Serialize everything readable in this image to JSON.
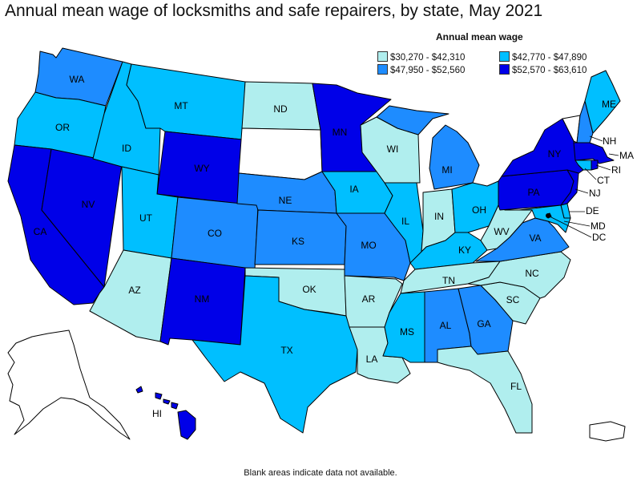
{
  "title": "Annual mean wage of locksmiths and safe repairers, by state, May 2021",
  "legend": {
    "title": "Annual mean wage",
    "items": [
      {
        "label": "$30,270 - $42,310",
        "color": "#b0eeee"
      },
      {
        "label": "$42,770 - $47,890",
        "color": "#00bfff"
      },
      {
        "label": "$47,950 - $52,560",
        "color": "#1e8cff"
      },
      {
        "label": "$52,570 - $63,610",
        "color": "#0000e8"
      }
    ]
  },
  "footnote": "Blank areas indicate data not available.",
  "no_data_color": "#ffffff",
  "states": {
    "WA": {
      "label": "WA",
      "tier": 2
    },
    "OR": {
      "label": "OR",
      "tier": 1
    },
    "CA": {
      "label": "CA",
      "tier": 3
    },
    "NV": {
      "label": "NV",
      "tier": 3
    },
    "ID": {
      "label": "ID",
      "tier": 1
    },
    "MT": {
      "label": "MT",
      "tier": 1
    },
    "WY": {
      "label": "WY",
      "tier": 3
    },
    "UT": {
      "label": "UT",
      "tier": 1
    },
    "AZ": {
      "label": "AZ",
      "tier": 0
    },
    "CO": {
      "label": "CO",
      "tier": 2
    },
    "NM": {
      "label": "NM",
      "tier": 3
    },
    "ND": {
      "label": "ND",
      "tier": 0
    },
    "SD": {
      "label": "",
      "tier": null
    },
    "NE": {
      "label": "NE",
      "tier": 2
    },
    "KS": {
      "label": "KS",
      "tier": 2
    },
    "OK": {
      "label": "OK",
      "tier": 0
    },
    "TX": {
      "label": "TX",
      "tier": 1
    },
    "MN": {
      "label": "MN",
      "tier": 3
    },
    "IA": {
      "label": "IA",
      "tier": 1
    },
    "MO": {
      "label": "MO",
      "tier": 2
    },
    "AR": {
      "label": "AR",
      "tier": 0
    },
    "LA": {
      "label": "LA",
      "tier": 0
    },
    "WI": {
      "label": "WI",
      "tier": 0
    },
    "IL": {
      "label": "IL",
      "tier": 1
    },
    "MI": {
      "label": "MI",
      "tier": 2
    },
    "IN": {
      "label": "IN",
      "tier": 0
    },
    "OH": {
      "label": "OH",
      "tier": 1
    },
    "KY": {
      "label": "KY",
      "tier": 1
    },
    "TN": {
      "label": "TN",
      "tier": 0
    },
    "MS": {
      "label": "MS",
      "tier": 1
    },
    "AL": {
      "label": "AL",
      "tier": 2
    },
    "GA": {
      "label": "GA",
      "tier": 2
    },
    "FL": {
      "label": "FL",
      "tier": 0
    },
    "SC": {
      "label": "SC",
      "tier": 0
    },
    "NC": {
      "label": "NC",
      "tier": 0
    },
    "VA": {
      "label": "VA",
      "tier": 2
    },
    "WV": {
      "label": "WV",
      "tier": 0
    },
    "PA": {
      "label": "PA",
      "tier": 3
    },
    "NY": {
      "label": "NY",
      "tier": 3
    },
    "VT": {
      "label": "",
      "tier": null
    },
    "NH": {
      "label": "NH",
      "tier": 2
    },
    "ME": {
      "label": "ME",
      "tier": 1
    },
    "MA": {
      "label": "MA",
      "tier": 3
    },
    "RI": {
      "label": "RI",
      "tier": 3
    },
    "CT": {
      "label": "CT",
      "tier": 1
    },
    "NJ": {
      "label": "NJ",
      "tier": 3
    },
    "DE": {
      "label": "DE",
      "tier": 1
    },
    "MD": {
      "label": "MD",
      "tier": 1
    },
    "DC": {
      "label": "DC",
      "tier": 3
    },
    "AK": {
      "label": "",
      "tier": null
    },
    "HI": {
      "label": "HI",
      "tier": 3
    },
    "PR": {
      "label": "",
      "tier": null
    }
  }
}
